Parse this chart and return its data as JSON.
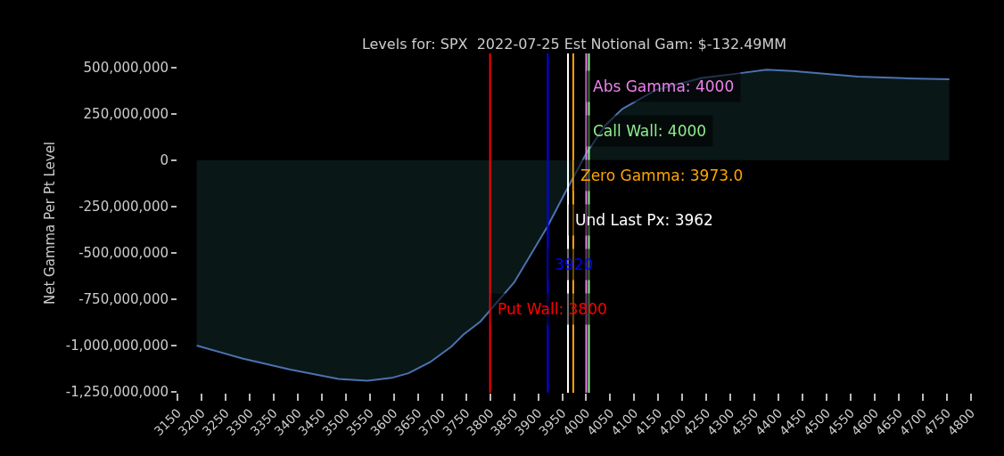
{
  "chart_data": {
    "type": "area",
    "title": "Levels for: SPX  2022-07-25 Est Notional Gam: $-132.49MM",
    "ylabel": "Net Gamma Per Pt Level",
    "x": [
      3190,
      3285,
      3385,
      3485,
      3545,
      3595,
      3630,
      3675,
      3720,
      3745,
      3780,
      3850,
      3920,
      3955,
      4000,
      4040,
      4075,
      4145,
      4240,
      4310,
      4375,
      4430,
      4505,
      4565,
      4660,
      4755
    ],
    "series": [
      {
        "color": "#4c72b0",
        "values": [
          -1000000000,
          -1070000000,
          -1130000000,
          -1180000000,
          -1190000000,
          -1175000000,
          -1150000000,
          -1090000000,
          -1005000000,
          -940000000,
          -870000000,
          -660000000,
          -355000000,
          -180000000,
          37000000,
          190000000,
          277000000,
          380000000,
          445000000,
          467000000,
          489000000,
          482000000,
          465000000,
          452000000,
          443000000,
          438000000
        ]
      }
    ],
    "xlim": [
      3150,
      4800
    ],
    "xticks": [
      3150,
      3200,
      3250,
      3300,
      3350,
      3400,
      3450,
      3500,
      3550,
      3600,
      3650,
      3700,
      3750,
      3800,
      3850,
      3900,
      3950,
      4000,
      4050,
      4100,
      4150,
      4200,
      4250,
      4300,
      4350,
      4400,
      4450,
      4500,
      4550,
      4600,
      4650,
      4700,
      4750,
      4800
    ],
    "ylim": [
      -1255000000,
      577000000
    ],
    "yticks": [
      {
        "value": 500000000,
        "label": "500,000,000"
      },
      {
        "value": 250000000,
        "label": "250,000,000"
      },
      0,
      {
        "value": -250000000,
        "label": "-250,000,000"
      },
      {
        "value": -500000000,
        "label": "-500,000,000"
      },
      {
        "value": -750000000,
        "label": "-750,000,000"
      },
      {
        "value": -1000000000,
        "label": "-1,000,000,000"
      },
      {
        "value": -1250000000,
        "label": "-1,250,000,000"
      }
    ],
    "ref_lines": [
      {
        "axis": "x",
        "value": 4000,
        "label": "Abs Gamma: 4000",
        "color": "#ee82ee"
      },
      {
        "axis": "x",
        "value": 4000,
        "label": "Call Wall: 4000",
        "color": "#90ee90"
      },
      {
        "axis": "x",
        "value": 3973,
        "label": "Zero Gamma: 3973.0",
        "color": "#ffa500"
      },
      {
        "axis": "x",
        "value": 3962,
        "label": "Und Last Px: 3962",
        "color": "#ffffff"
      },
      {
        "axis": "x",
        "value": 3920,
        "label": "3920",
        "color": "#0000ff"
      },
      {
        "axis": "x",
        "value": 3800,
        "label": "Put Wall: 3800",
        "color": "#ff0000"
      }
    ],
    "grid": false
  }
}
